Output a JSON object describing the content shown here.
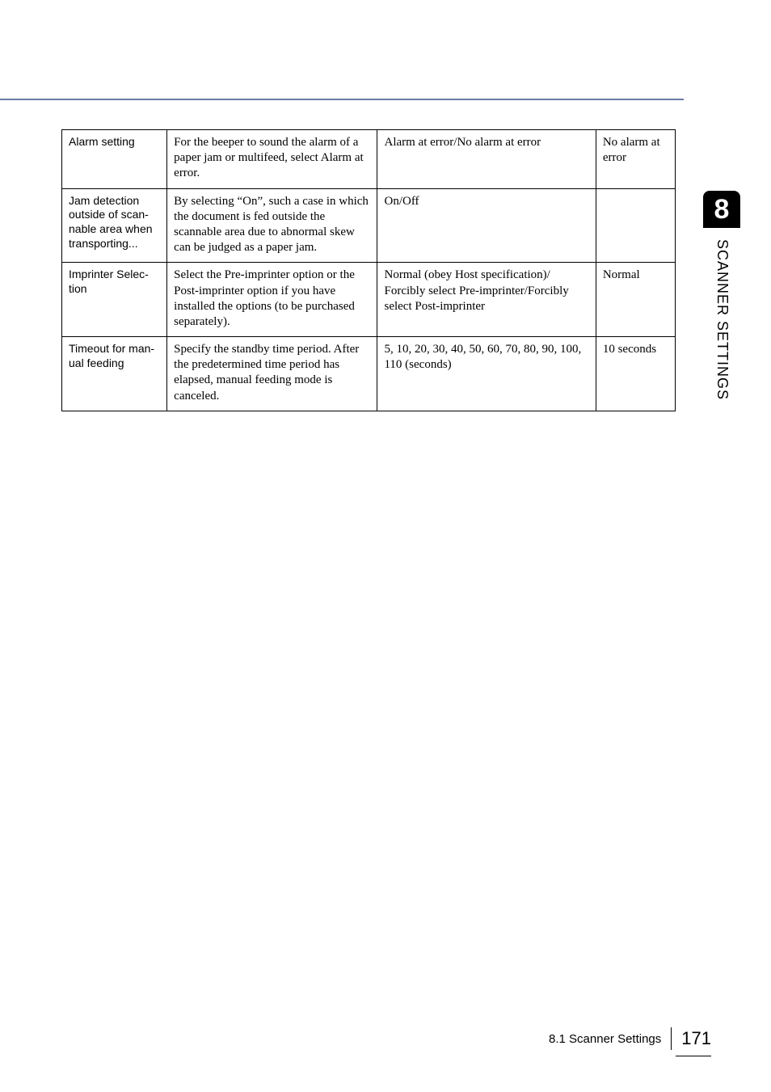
{
  "side": {
    "chapter_number": "8",
    "chapter_title": "SCANNER SETTINGS"
  },
  "table": {
    "rows": [
      {
        "name": "Alarm setting",
        "desc": "For the beeper to sound the alarm of a paper jam or multifeed, select Alarm at error.",
        "options": "Alarm at error/No alarm at error",
        "default": "No alarm at error"
      },
      {
        "name": "Jam detection outside of scan-nable area when transporting...",
        "desc": "By selecting “On”, such a case in which the document is fed outside the scannable area due to abnormal skew can be judged as a paper jam.",
        "options": "On/Off",
        "default": ""
      },
      {
        "name": "Imprinter Selec-tion",
        "desc": "Select the Pre-imprinter option or the Post-imprinter option if you have installed the options (to be purchased separately).",
        "options": "Normal (obey Host specification)/ Forcibly select Pre-imprinter/Forcibly select Post-imprinter",
        "default": "Normal"
      },
      {
        "name": "Timeout for man-ual feeding",
        "desc": "Specify the standby time period. After the predetermined time period has elapsed, manual feeding mode is canceled.",
        "options": "5, 10, 20, 30, 40, 50, 60, 70, 80, 90, 100, 110 (seconds)",
        "default": "10 seconds"
      }
    ]
  },
  "footer": {
    "section": "8.1 Scanner Settings",
    "page": "171"
  }
}
